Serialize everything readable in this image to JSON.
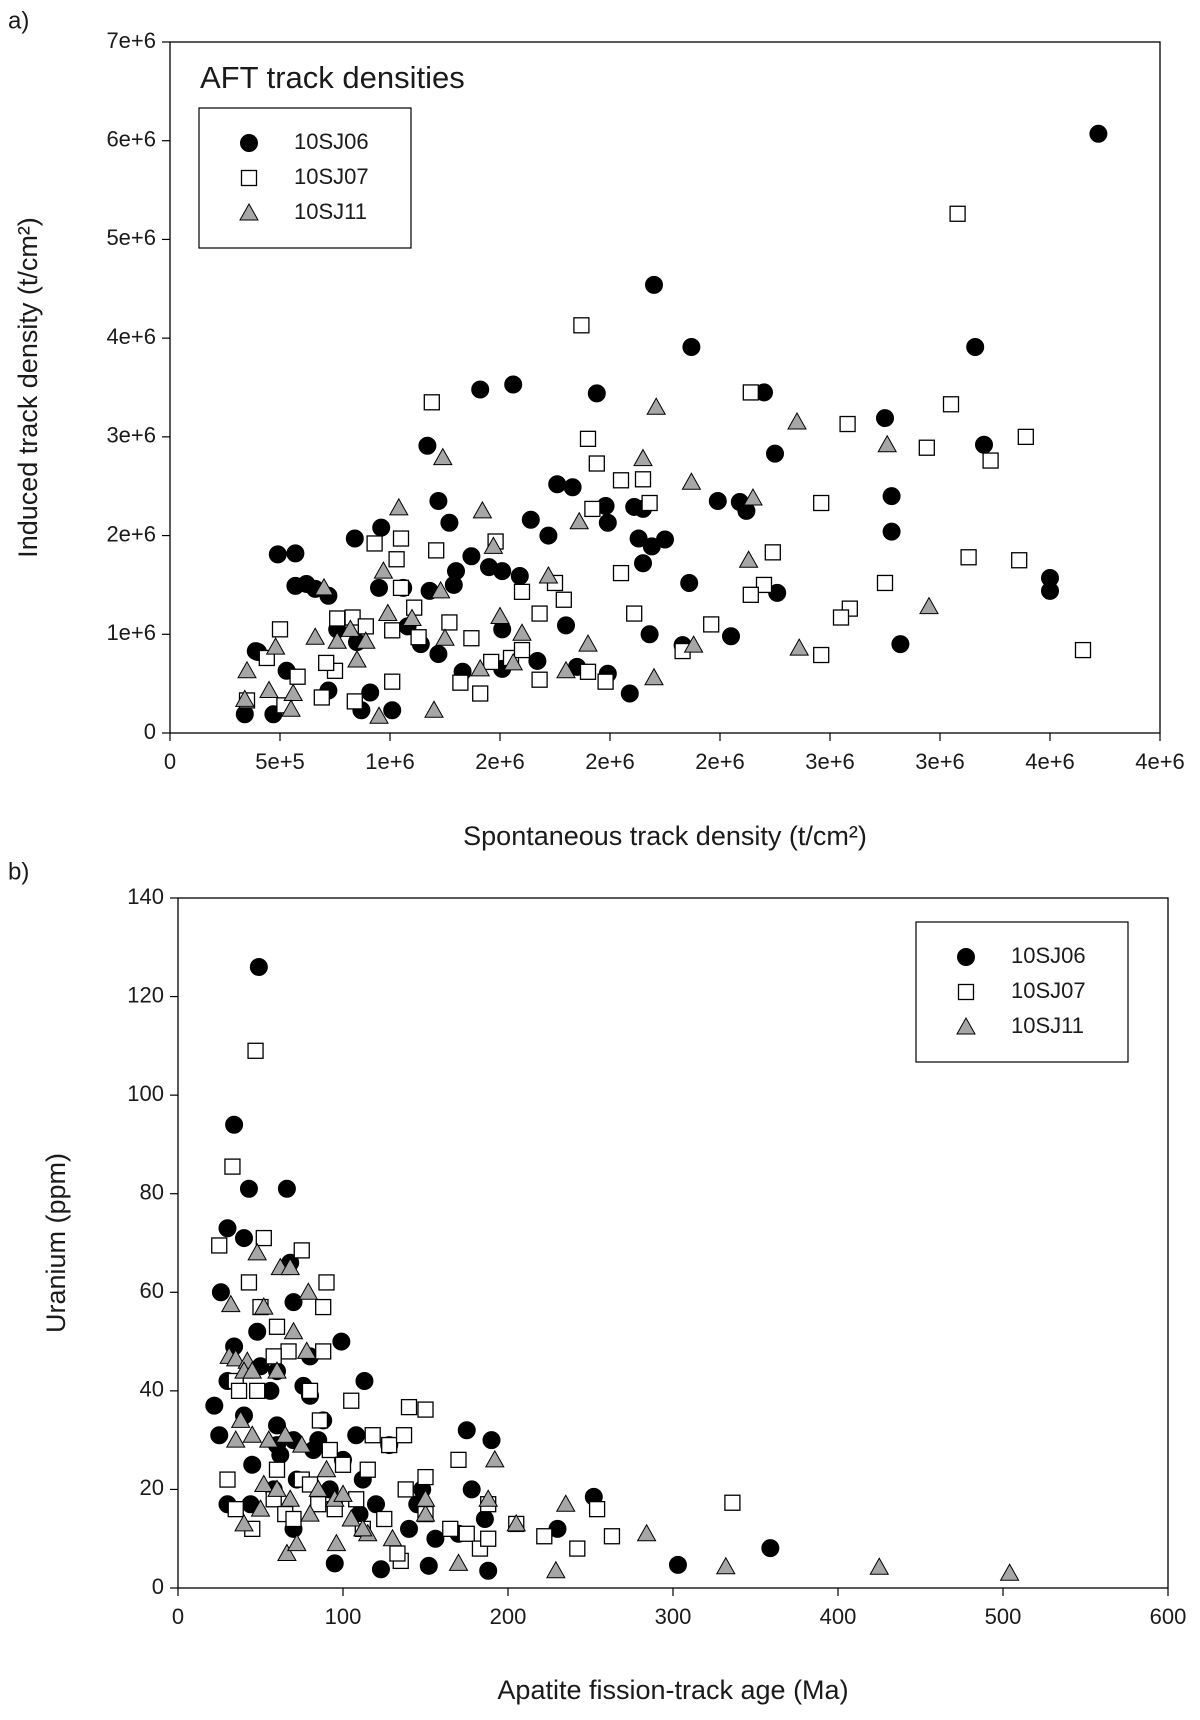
{
  "chart_data": [
    {
      "type": "scatter",
      "panel_label": "a)",
      "title": "AFT track densities",
      "xlabel": "Spontaneous track density (t/cm²)",
      "ylabel": "Induced track density (t/cm²)",
      "xlim": [
        0,
        4500000
      ],
      "ylim": [
        0,
        7000000
      ],
      "xticks": [
        0,
        {
          "value": 500000,
          "label": "5e+5"
        },
        {
          "value": 1000000,
          "label": "1e+6"
        },
        {
          "value": 1500000,
          "label": "2e+6"
        },
        {
          "value": 2000000,
          "label": "2e+6"
        },
        {
          "value": 2500000,
          "label": "2e+6"
        },
        {
          "value": 3000000,
          "label": "3e+6"
        },
        {
          "value": 3500000,
          "label": "3e+6"
        },
        {
          "value": 4000000,
          "label": "4e+6"
        },
        {
          "value": 4500000,
          "label": "4e+6"
        }
      ],
      "yticks": [
        0,
        {
          "value": 1000000,
          "label": "1e+6"
        },
        {
          "value": 2000000,
          "label": "2e+6"
        },
        {
          "value": 3000000,
          "label": "3e+6"
        },
        {
          "value": 4000000,
          "label": "4e+6"
        },
        {
          "value": 5000000,
          "label": "5e+6"
        },
        {
          "value": 6000000,
          "label": "6e+6"
        },
        {
          "value": 7000000,
          "label": "7e+6"
        }
      ],
      "legend": "upper left",
      "series": [
        {
          "name": "10SJ06",
          "color": "#000000",
          "marker": "circle",
          "x": [
            4220000,
            2200000,
            2370000,
            3660000,
            1410000,
            1560000,
            1940000,
            2700000,
            3250000,
            3700000,
            2750000,
            1170000,
            3280000,
            3280000,
            4000000,
            4000000,
            3320000,
            1220000,
            1270000,
            840000,
            960000,
            1760000,
            1830000,
            1640000,
            1720000,
            1980000,
            1990000,
            2110000,
            2130000,
            2190000,
            2250000,
            2150000,
            2150000,
            2490000,
            2590000,
            2620000,
            2360000,
            2760000,
            2180000,
            2330000,
            2550000,
            2090000,
            1990000,
            1850000,
            1800000,
            1590000,
            1510000,
            1450000,
            1370000,
            1300000,
            1290000,
            1180000,
            620000,
            570000,
            490000,
            570000,
            660000,
            720000,
            760000,
            950000,
            1060000,
            1080000,
            1140000,
            1220000,
            1330000,
            1510000,
            1510000,
            1670000,
            850000,
            1010000,
            870000,
            400000,
            530000,
            340000,
            470000,
            390000,
            720000,
            910000
          ],
          "values": [
            6070000,
            4540000,
            3910000,
            3910000,
            3480000,
            3530000,
            3440000,
            3450000,
            3190000,
            2920000,
            2830000,
            2910000,
            2400000,
            2040000,
            1570000,
            1440000,
            900000,
            2350000,
            2130000,
            1970000,
            2080000,
            2520000,
            2490000,
            2160000,
            2000000,
            2300000,
            2130000,
            2290000,
            1970000,
            1890000,
            1960000,
            1720000,
            2270000,
            2350000,
            2340000,
            2250000,
            1520000,
            1420000,
            1000000,
            890000,
            980000,
            400000,
            600000,
            670000,
            1090000,
            1590000,
            1640000,
            1680000,
            1790000,
            1640000,
            1500000,
            1440000,
            1510000,
            1820000,
            1810000,
            1490000,
            1460000,
            1390000,
            1050000,
            1470000,
            1470000,
            1080000,
            900000,
            800000,
            620000,
            650000,
            1050000,
            730000,
            920000,
            230000,
            230000,
            820000,
            630000,
            190000,
            190000,
            830000,
            430000,
            410000
          ]
        },
        {
          "name": "10SJ07",
          "color": "#ffffff",
          "marker": "square",
          "x": [
            3580000,
            1870000,
            2640000,
            3550000,
            3080000,
            3890000,
            3440000,
            3730000,
            1190000,
            1900000,
            1940000,
            2050000,
            2150000,
            2180000,
            1920000,
            2960000,
            2740000,
            3630000,
            3860000,
            3250000,
            2700000,
            2640000,
            2050000,
            2110000,
            3090000,
            3050000,
            2460000,
            2330000,
            2960000,
            4150000,
            1480000,
            1600000,
            1750000,
            1790000,
            1680000,
            1210000,
            930000,
            1050000,
            1030000,
            1050000,
            1110000,
            1270000,
            830000,
            890000,
            1010000,
            1130000,
            1370000,
            1460000,
            1550000,
            1600000,
            1680000,
            1900000,
            1980000,
            1320000,
            1410000,
            1010000,
            750000,
            710000,
            500000,
            580000,
            690000,
            840000,
            440000,
            520000,
            350000,
            760000
          ],
          "values": [
            5260000,
            4130000,
            3450000,
            3330000,
            3130000,
            3000000,
            2890000,
            2760000,
            3350000,
            2980000,
            2730000,
            2560000,
            2570000,
            2330000,
            2270000,
            2330000,
            1830000,
            1780000,
            1750000,
            1520000,
            1500000,
            1400000,
            1620000,
            1210000,
            1260000,
            1170000,
            1100000,
            830000,
            790000,
            840000,
            1940000,
            1430000,
            1520000,
            1350000,
            1210000,
            1850000,
            1920000,
            1970000,
            1760000,
            1470000,
            1270000,
            1120000,
            1170000,
            1080000,
            1040000,
            970000,
            960000,
            720000,
            760000,
            840000,
            540000,
            620000,
            520000,
            510000,
            400000,
            520000,
            630000,
            710000,
            1050000,
            570000,
            360000,
            320000,
            760000,
            280000,
            330000,
            1160000
          ]
        },
        {
          "name": "10SJ11",
          "color": "#a6a6a6",
          "marker": "triangle",
          "x": [
            2210000,
            2850000,
            3260000,
            2150000,
            1240000,
            2370000,
            2650000,
            1860000,
            1420000,
            1040000,
            1470000,
            2630000,
            1720000,
            970000,
            1230000,
            700000,
            3450000,
            2380000,
            2860000,
            1900000,
            2200000,
            1800000,
            1500000,
            1600000,
            1410000,
            1200000,
            950000,
            890000,
            990000,
            660000,
            820000,
            850000,
            760000,
            350000,
            480000,
            450000,
            560000,
            550000,
            340000,
            1250000,
            1100000,
            1560000
          ],
          "values": [
            3300000,
            3150000,
            2920000,
            2780000,
            2790000,
            2540000,
            2380000,
            2140000,
            2250000,
            2280000,
            1890000,
            1750000,
            1590000,
            1640000,
            1440000,
            1470000,
            1280000,
            890000,
            860000,
            900000,
            560000,
            630000,
            1180000,
            1010000,
            650000,
            230000,
            170000,
            930000,
            1210000,
            970000,
            1050000,
            740000,
            930000,
            630000,
            870000,
            430000,
            400000,
            240000,
            340000,
            960000,
            1160000,
            710000
          ]
        }
      ]
    },
    {
      "type": "scatter",
      "panel_label": "b)",
      "xlabel": "Apatite fission-track age (Ma)",
      "ylabel": "Uranium (ppm)",
      "xlim": [
        0,
        600
      ],
      "ylim": [
        0,
        140
      ],
      "xticks": [
        0,
        100,
        200,
        300,
        400,
        500,
        600
      ],
      "yticks": [
        0,
        20,
        40,
        60,
        80,
        100,
        120,
        140
      ],
      "legend": "upper right",
      "series": [
        {
          "name": "10SJ06",
          "color": "#000000",
          "marker": "circle",
          "x": [
            49,
            34,
            43,
            66,
            30,
            40,
            26,
            68,
            34,
            48,
            70,
            99,
            30,
            50,
            60,
            80,
            56,
            76,
            80,
            113,
            22,
            40,
            60,
            70,
            88,
            108,
            128,
            25,
            45,
            62,
            82,
            100,
            175,
            190,
            30,
            44,
            58,
            72,
            92,
            112,
            148,
            178,
            110,
            120,
            145,
            186,
            230,
            252,
            95,
            123,
            152,
            170,
            188,
            303,
            359,
            140,
            156,
            70,
            60,
            85
          ],
          "values": [
            126,
            94,
            81,
            81,
            73,
            71,
            60,
            66,
            49,
            52,
            58,
            50,
            42,
            45,
            44,
            47,
            40,
            41,
            39,
            42,
            37,
            35,
            33,
            30,
            34,
            31,
            29,
            31,
            25,
            27,
            28,
            26,
            32,
            30,
            17,
            17,
            20,
            22,
            20,
            22,
            20,
            20,
            15,
            17,
            17,
            14,
            12,
            18.5,
            5,
            3.8,
            4.5,
            11,
            3.5,
            4.7,
            8.1,
            12,
            10,
            12,
            29,
            30
          ]
        },
        {
          "name": "10SJ07",
          "color": "#ffffff",
          "marker": "square",
          "x": [
            47,
            33,
            25,
            52,
            75,
            90,
            88,
            43,
            60,
            50,
            35,
            37,
            48,
            67,
            88,
            58,
            80,
            105,
            140,
            150,
            86,
            92,
            118,
            128,
            137,
            100,
            115,
            138,
            150,
            170,
            188,
            30,
            35,
            45,
            58,
            65,
            75,
            85,
            95,
            108,
            125,
            135,
            150,
            165,
            175,
            183,
            188,
            205,
            222,
            242,
            254,
            263,
            336,
            133,
            112,
            70,
            60,
            80
          ],
          "values": [
            109,
            85.5,
            69.5,
            71,
            68.5,
            62,
            57,
            62,
            53,
            57,
            42,
            40,
            40,
            48,
            48,
            47,
            40,
            38,
            36.7,
            36.2,
            34,
            28,
            31,
            29,
            31,
            25,
            24,
            20,
            22.5,
            26,
            17,
            22,
            16,
            12,
            18,
            15,
            22,
            17,
            16,
            18,
            14,
            5.5,
            15,
            12,
            11,
            8,
            10,
            13,
            10.5,
            8,
            16,
            10.5,
            17.3,
            7,
            12,
            14,
            24,
            21
          ]
        },
        {
          "name": "10SJ11",
          "color": "#a6a6a6",
          "marker": "triangle",
          "x": [
            48,
            62,
            68,
            52,
            79,
            32,
            70,
            31,
            35,
            42,
            78,
            40,
            45,
            60,
            38,
            45,
            55,
            65,
            75,
            90,
            52,
            60,
            68,
            80,
            95,
            105,
            115,
            130,
            150,
            170,
            192,
            188,
            205,
            235,
            229,
            284,
            332,
            425,
            504,
            50,
            40,
            66,
            72,
            96,
            112,
            85,
            100,
            35,
            150
          ],
          "values": [
            68,
            65,
            65,
            57,
            60,
            57.5,
            52,
            47,
            46.5,
            46,
            48,
            44,
            44,
            44,
            34,
            31,
            30,
            31,
            29,
            24,
            21,
            20,
            18,
            15,
            18,
            14,
            11,
            10,
            15,
            5,
            26,
            18,
            13,
            17,
            3.5,
            11,
            4.3,
            4.2,
            3,
            16,
            13,
            7,
            9,
            9,
            12,
            20,
            19,
            30,
            18
          ]
        }
      ]
    }
  ]
}
